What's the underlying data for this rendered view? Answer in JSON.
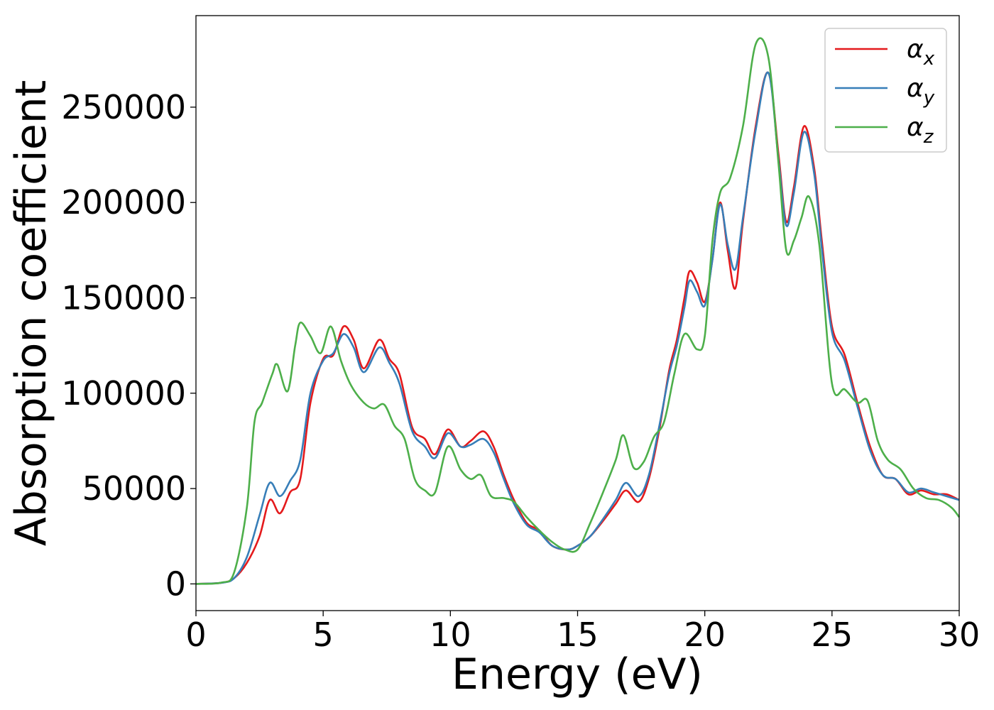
{
  "chart_data": {
    "type": "line",
    "title": "",
    "xlabel": "Energy (eV)",
    "ylabel": "Absorption coefficient",
    "xlim": [
      0,
      30
    ],
    "ylim": [
      -14000,
      298000
    ],
    "xticks": [
      0,
      5,
      10,
      15,
      20,
      25,
      30
    ],
    "yticks": [
      0,
      50000,
      100000,
      150000,
      200000,
      250000
    ],
    "grid": false,
    "legend_position": "top-right",
    "series": [
      {
        "name": "αx",
        "label_base": "α",
        "label_sub": "x",
        "color": "#e41a1c",
        "points": [
          [
            0,
            0
          ],
          [
            1,
            600
          ],
          [
            1.5,
            3000
          ],
          [
            2,
            11000
          ],
          [
            2.5,
            25000
          ],
          [
            2.9,
            44000
          ],
          [
            3.3,
            37000
          ],
          [
            3.7,
            48000
          ],
          [
            4.1,
            55000
          ],
          [
            4.5,
            95000
          ],
          [
            5,
            118000
          ],
          [
            5.4,
            120000
          ],
          [
            5.8,
            135000
          ],
          [
            6.2,
            128000
          ],
          [
            6.6,
            113000
          ],
          [
            7.2,
            128000
          ],
          [
            7.6,
            118000
          ],
          [
            8,
            110000
          ],
          [
            8.5,
            82000
          ],
          [
            9,
            76000
          ],
          [
            9.4,
            68000
          ],
          [
            9.9,
            81000
          ],
          [
            10.4,
            72000
          ],
          [
            10.8,
            75000
          ],
          [
            11.3,
            80000
          ],
          [
            11.7,
            72000
          ],
          [
            12.1,
            57000
          ],
          [
            12.5,
            44000
          ],
          [
            13,
            32000
          ],
          [
            13.5,
            28000
          ],
          [
            14,
            20000
          ],
          [
            14.6,
            18000
          ],
          [
            15,
            20000
          ],
          [
            15.5,
            25000
          ],
          [
            16,
            33000
          ],
          [
            16.5,
            42000
          ],
          [
            16.9,
            49000
          ],
          [
            17.4,
            43000
          ],
          [
            17.8,
            55000
          ],
          [
            18.2,
            80000
          ],
          [
            18.6,
            112000
          ],
          [
            18.9,
            128000
          ],
          [
            19.2,
            150000
          ],
          [
            19.4,
            164000
          ],
          [
            19.7,
            158000
          ],
          [
            20,
            148000
          ],
          [
            20.3,
            170000
          ],
          [
            20.6,
            200000
          ],
          [
            20.9,
            175000
          ],
          [
            21.2,
            155000
          ],
          [
            21.5,
            190000
          ],
          [
            22,
            240000
          ],
          [
            22.5,
            268000
          ],
          [
            22.9,
            225000
          ],
          [
            23.2,
            190000
          ],
          [
            23.5,
            208000
          ],
          [
            23.9,
            240000
          ],
          [
            24.3,
            218000
          ],
          [
            24.6,
            180000
          ],
          [
            25,
            135000
          ],
          [
            25.5,
            120000
          ],
          [
            26,
            95000
          ],
          [
            26.5,
            72000
          ],
          [
            27,
            57000
          ],
          [
            27.5,
            55000
          ],
          [
            28,
            47000
          ],
          [
            28.5,
            49000
          ],
          [
            29,
            47000
          ],
          [
            29.5,
            47000
          ],
          [
            30,
            44000
          ]
        ]
      },
      {
        "name": "αy",
        "label_base": "α",
        "label_sub": "y",
        "color": "#377eb8",
        "points": [
          [
            0,
            0
          ],
          [
            1,
            600
          ],
          [
            1.5,
            3000
          ],
          [
            2,
            14000
          ],
          [
            2.5,
            36000
          ],
          [
            2.9,
            53000
          ],
          [
            3.3,
            46000
          ],
          [
            3.7,
            54000
          ],
          [
            4.1,
            65000
          ],
          [
            4.5,
            100000
          ],
          [
            5,
            117000
          ],
          [
            5.4,
            121000
          ],
          [
            5.8,
            131000
          ],
          [
            6.2,
            124000
          ],
          [
            6.6,
            111000
          ],
          [
            7.2,
            124000
          ],
          [
            7.6,
            116000
          ],
          [
            8,
            105000
          ],
          [
            8.5,
            80000
          ],
          [
            9,
            72000
          ],
          [
            9.4,
            66000
          ],
          [
            9.9,
            79000
          ],
          [
            10.4,
            72000
          ],
          [
            10.8,
            73000
          ],
          [
            11.3,
            76000
          ],
          [
            11.7,
            69000
          ],
          [
            12.1,
            55000
          ],
          [
            12.5,
            42000
          ],
          [
            13,
            31000
          ],
          [
            13.5,
            27000
          ],
          [
            14,
            20000
          ],
          [
            14.6,
            18000
          ],
          [
            15,
            20000
          ],
          [
            15.5,
            25000
          ],
          [
            16,
            34000
          ],
          [
            16.5,
            44000
          ],
          [
            16.9,
            53000
          ],
          [
            17.4,
            46000
          ],
          [
            17.8,
            57000
          ],
          [
            18.2,
            82000
          ],
          [
            18.6,
            110000
          ],
          [
            18.9,
            125000
          ],
          [
            19.2,
            145000
          ],
          [
            19.4,
            159000
          ],
          [
            19.7,
            153000
          ],
          [
            20,
            146000
          ],
          [
            20.3,
            170000
          ],
          [
            20.6,
            199000
          ],
          [
            20.9,
            178000
          ],
          [
            21.2,
            165000
          ],
          [
            21.5,
            192000
          ],
          [
            22,
            238000
          ],
          [
            22.5,
            268000
          ],
          [
            22.9,
            222000
          ],
          [
            23.2,
            188000
          ],
          [
            23.5,
            205000
          ],
          [
            23.9,
            237000
          ],
          [
            24.3,
            215000
          ],
          [
            24.6,
            176000
          ],
          [
            25,
            132000
          ],
          [
            25.5,
            117000
          ],
          [
            26,
            93000
          ],
          [
            26.5,
            70000
          ],
          [
            27,
            57000
          ],
          [
            27.5,
            55000
          ],
          [
            28,
            48000
          ],
          [
            28.5,
            50000
          ],
          [
            29,
            48000
          ],
          [
            29.5,
            46000
          ],
          [
            30,
            44000
          ]
        ]
      },
      {
        "name": "αz",
        "label_base": "α",
        "label_sub": "z",
        "color": "#4daf4a",
        "points": [
          [
            0,
            0
          ],
          [
            1,
            700
          ],
          [
            1.5,
            6000
          ],
          [
            2,
            40000
          ],
          [
            2.3,
            85000
          ],
          [
            2.6,
            95000
          ],
          [
            3,
            110000
          ],
          [
            3.2,
            115000
          ],
          [
            3.6,
            101000
          ],
          [
            3.9,
            125000
          ],
          [
            4.1,
            137000
          ],
          [
            4.5,
            130000
          ],
          [
            4.9,
            121000
          ],
          [
            5.3,
            135000
          ],
          [
            5.7,
            117000
          ],
          [
            6.1,
            104000
          ],
          [
            6.6,
            95000
          ],
          [
            7,
            92000
          ],
          [
            7.4,
            94000
          ],
          [
            7.8,
            83000
          ],
          [
            8.2,
            76000
          ],
          [
            8.6,
            55000
          ],
          [
            9,
            49000
          ],
          [
            9.4,
            48000
          ],
          [
            9.9,
            72000
          ],
          [
            10.4,
            60000
          ],
          [
            10.8,
            55000
          ],
          [
            11.2,
            57000
          ],
          [
            11.6,
            46000
          ],
          [
            12.1,
            45000
          ],
          [
            12.5,
            43000
          ],
          [
            13,
            35000
          ],
          [
            13.5,
            28000
          ],
          [
            14,
            22000
          ],
          [
            14.5,
            18000
          ],
          [
            15,
            18000
          ],
          [
            15.5,
            32000
          ],
          [
            16,
            48000
          ],
          [
            16.5,
            65000
          ],
          [
            16.8,
            78000
          ],
          [
            17.2,
            61000
          ],
          [
            17.6,
            64000
          ],
          [
            18,
            77000
          ],
          [
            18.4,
            85000
          ],
          [
            18.8,
            110000
          ],
          [
            19.2,
            131000
          ],
          [
            19.7,
            123000
          ],
          [
            20,
            130000
          ],
          [
            20.3,
            180000
          ],
          [
            20.6,
            205000
          ],
          [
            21,
            213000
          ],
          [
            21.5,
            240000
          ],
          [
            22,
            283000
          ],
          [
            22.5,
            276000
          ],
          [
            22.9,
            220000
          ],
          [
            23.2,
            175000
          ],
          [
            23.5,
            180000
          ],
          [
            23.8,
            192000
          ],
          [
            24.1,
            203000
          ],
          [
            24.5,
            178000
          ],
          [
            25,
            105000
          ],
          [
            25.5,
            102000
          ],
          [
            26,
            95000
          ],
          [
            26.4,
            96000
          ],
          [
            26.8,
            75000
          ],
          [
            27.2,
            65000
          ],
          [
            27.7,
            60000
          ],
          [
            28.2,
            50000
          ],
          [
            28.7,
            45000
          ],
          [
            29.2,
            44000
          ],
          [
            29.7,
            40000
          ],
          [
            30,
            35000
          ]
        ]
      }
    ]
  }
}
